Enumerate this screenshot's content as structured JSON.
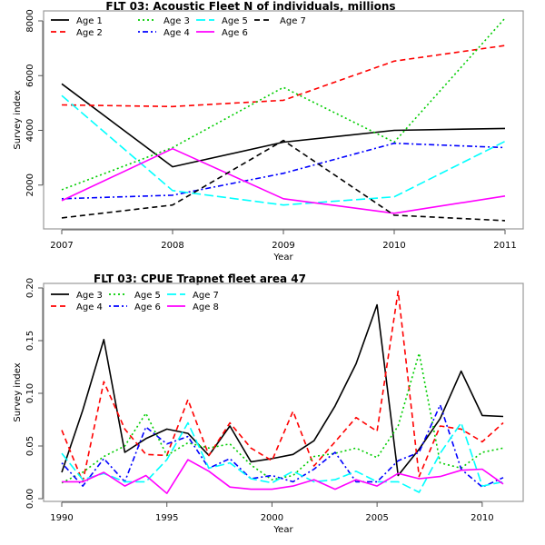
{
  "chart_data": [
    {
      "type": "line",
      "title": "FLT 03: Acoustic Fleet  N of individuals, millions",
      "xlabel": "Year",
      "ylabel": "Survey index",
      "xlim": [
        2007,
        2011
      ],
      "ylim": [
        0,
        8000
      ],
      "x": [
        2007,
        2008,
        2009,
        2010,
        2011
      ],
      "xticks": [
        "2007",
        "2008",
        "2009",
        "2010",
        "2011"
      ],
      "yticks": [
        "2000",
        "4000",
        "6000",
        "8000"
      ],
      "ytick_values": [
        2000,
        4000,
        6000,
        8000
      ],
      "legend_position": "top-left",
      "legend_columns": 4,
      "series": [
        {
          "name": "Age 1",
          "color": "#000000",
          "style": "solid",
          "values": [
            5700,
            2670,
            3570,
            4000,
            4070
          ]
        },
        {
          "name": "Age 2",
          "color": "#ff0000",
          "style": "dashed",
          "values": [
            4930,
            4870,
            5100,
            6530,
            7100
          ]
        },
        {
          "name": "Age 3",
          "color": "#00cd00",
          "style": "dotted",
          "values": [
            1830,
            3370,
            5570,
            3570,
            8100
          ]
        },
        {
          "name": "Age 4",
          "color": "#0000ff",
          "style": "dotdash",
          "values": [
            1500,
            1630,
            2430,
            3530,
            3370
          ]
        },
        {
          "name": "Age 5",
          "color": "#00ffff",
          "style": "longdash",
          "values": [
            5270,
            1800,
            1270,
            1570,
            3600
          ]
        },
        {
          "name": "Age 6",
          "color": "#ff00ff",
          "style": "solid",
          "values": [
            1430,
            3330,
            1500,
            970,
            1600
          ]
        },
        {
          "name": "Age 7",
          "color": "#000000",
          "style": "dashed",
          "values": [
            800,
            1270,
            3630,
            900,
            700
          ]
        }
      ]
    },
    {
      "type": "line",
      "title": "FLT 03: CPUE Trapnet fleet area 47",
      "xlabel": "Year",
      "ylabel": "Survey index",
      "xlim": [
        1990,
        2011
      ],
      "ylim": [
        0,
        0.2
      ],
      "x": [
        1990,
        1991,
        1992,
        1993,
        1994,
        1995,
        1996,
        1997,
        1998,
        1999,
        2000,
        2001,
        2002,
        2003,
        2004,
        2005,
        2006,
        2007,
        2008,
        2009,
        2010,
        2011
      ],
      "xticks": [
        "1990",
        "1995",
        "2000",
        "2005",
        "2010"
      ],
      "xtick_values": [
        1990,
        1995,
        2000,
        2005,
        2010
      ],
      "yticks": [
        "0.00",
        "0.05",
        "0.10",
        "0.15",
        "0.20"
      ],
      "ytick_values": [
        0,
        0.05,
        0.1,
        0.15,
        0.2
      ],
      "legend_position": "top-left",
      "legend_columns": 3,
      "series": [
        {
          "name": "Age 3",
          "color": "#000000",
          "style": "solid",
          "values": [
            0.025,
            0.084,
            0.151,
            0.044,
            0.057,
            0.066,
            0.062,
            0.041,
            0.069,
            0.035,
            0.038,
            0.042,
            0.055,
            0.088,
            0.128,
            0.184,
            0.022,
            0.047,
            0.076,
            0.121,
            0.079,
            0.078
          ]
        },
        {
          "name": "Age 4",
          "color": "#ff0000",
          "style": "dashed",
          "values": [
            0.065,
            0.016,
            0.111,
            0.066,
            0.042,
            0.041,
            0.094,
            0.041,
            0.072,
            0.048,
            0.036,
            0.083,
            0.031,
            0.054,
            0.077,
            0.064,
            0.197,
            0.021,
            0.069,
            0.066,
            0.054,
            0.072
          ]
        },
        {
          "name": "Age 5",
          "color": "#00cd00",
          "style": "dotted",
          "values": [
            0.015,
            0.025,
            0.04,
            0.05,
            0.081,
            0.041,
            0.053,
            0.048,
            0.052,
            0.032,
            0.018,
            0.022,
            0.04,
            0.043,
            0.048,
            0.039,
            0.069,
            0.138,
            0.034,
            0.029,
            0.044,
            0.048
          ]
        },
        {
          "name": "Age 6",
          "color": "#0000ff",
          "style": "dotdash",
          "values": [
            0.034,
            0.012,
            0.038,
            0.016,
            0.068,
            0.052,
            0.059,
            0.029,
            0.038,
            0.019,
            0.022,
            0.016,
            0.028,
            0.044,
            0.016,
            0.016,
            0.036,
            0.044,
            0.089,
            0.028,
            0.011,
            0.02
          ]
        },
        {
          "name": "Age 7",
          "color": "#00ffff",
          "style": "longdash",
          "values": [
            0.043,
            0.018,
            0.024,
            0.016,
            0.016,
            0.037,
            0.072,
            0.029,
            0.034,
            0.019,
            0.015,
            0.026,
            0.016,
            0.018,
            0.026,
            0.016,
            0.016,
            0.006,
            0.043,
            0.072,
            0.012,
            0.016
          ]
        },
        {
          "name": "Age 8",
          "color": "#ff00ff",
          "style": "solid",
          "values": [
            0.016,
            0.016,
            0.025,
            0.012,
            0.022,
            0.005,
            0.037,
            0.026,
            0.011,
            0.009,
            0.009,
            0.012,
            0.018,
            0.009,
            0.018,
            0.012,
            0.024,
            0.019,
            0.021,
            0.027,
            0.028,
            0.014
          ]
        }
      ]
    }
  ]
}
